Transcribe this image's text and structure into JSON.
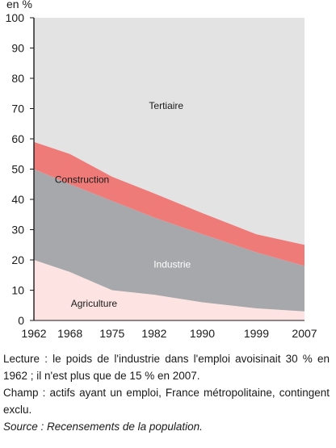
{
  "chart_data": {
    "type": "area",
    "stacked": true,
    "ylabel": "en %",
    "ylim": [
      0,
      100
    ],
    "yticks": [
      0,
      10,
      20,
      30,
      40,
      50,
      60,
      70,
      80,
      90,
      100
    ],
    "x": [
      1962,
      1968,
      1975,
      1982,
      1990,
      1999,
      2007
    ],
    "x_tick_labels": [
      "1962",
      "1968",
      "1975",
      "1982",
      "1990",
      "1999",
      "2007"
    ],
    "series": [
      {
        "name": "Agriculture",
        "values": [
          20,
          16,
          10,
          8.5,
          6,
          4,
          3
        ],
        "color": "#fde4e2"
      },
      {
        "name": "Industrie",
        "values": [
          30,
          29,
          29.5,
          25.5,
          22.5,
          18.5,
          15
        ],
        "color": "#a6a8ab"
      },
      {
        "name": "Construction",
        "values": [
          9,
          10,
          8,
          8,
          7,
          6,
          7
        ],
        "color": "#ef7b79"
      },
      {
        "name": "Tertiaire",
        "values": [
          41,
          45,
          52.5,
          58,
          64.5,
          71.5,
          75
        ],
        "color": "#e3e3e4"
      }
    ],
    "grid": false
  },
  "notes": {
    "lecture": "Lecture : le poids de l'industrie dans l'emploi avoisinait 30 % en 1962 ; il n'est plus que de 15 % en 2007.",
    "champ": "Champ : actifs ayant un emploi, France métropolitaine, contingent exclu.",
    "source": "Source : Recensements de la population."
  }
}
